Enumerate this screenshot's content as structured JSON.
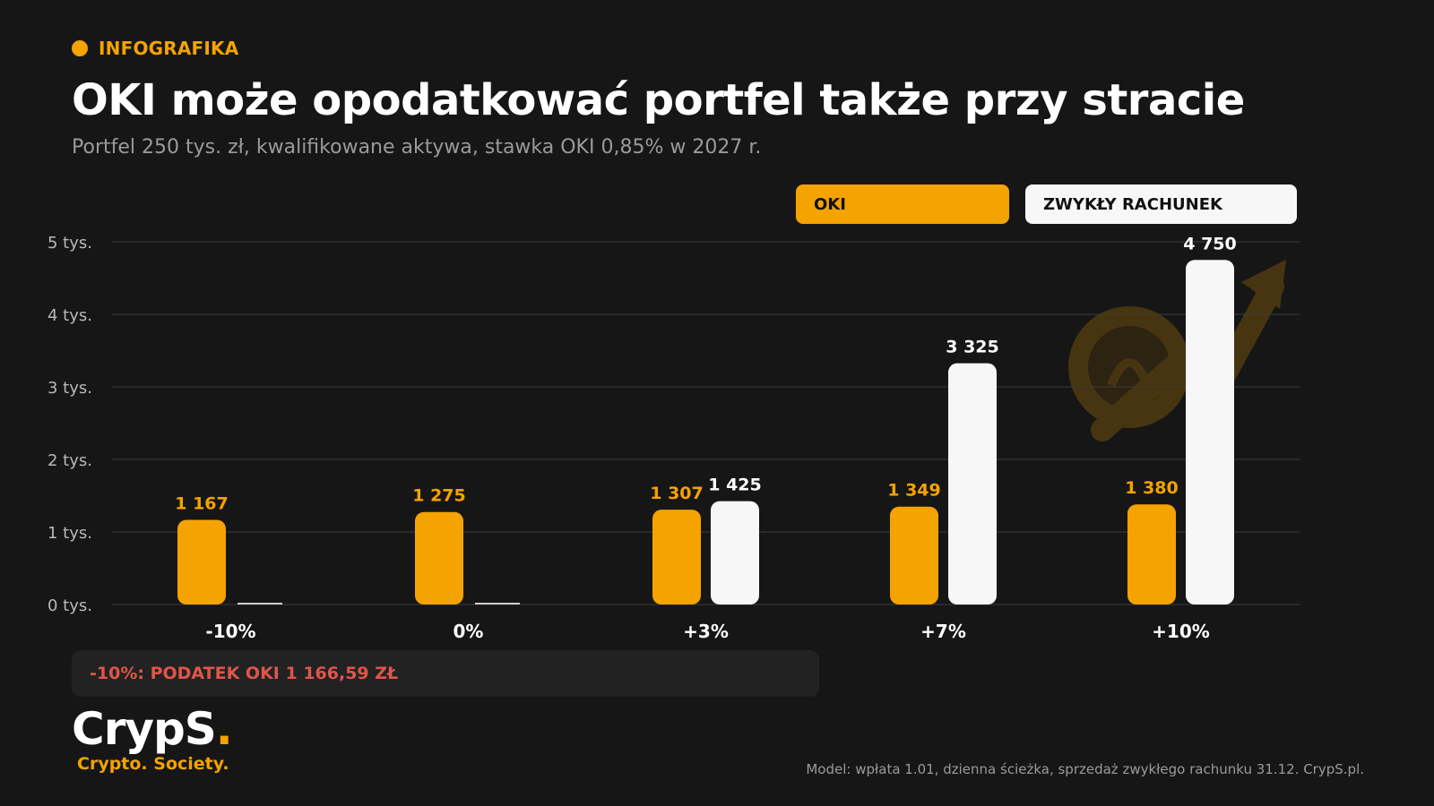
{
  "header": {
    "tag": "INFOGRAFIKA",
    "title": "OKI może opodatkować portfel także przy stracie",
    "subtitle": "Portfel 250 tys. zł, kwalifikowane aktywa, stawka OKI 0,85% w 2027 r."
  },
  "colors": {
    "oki": "#F5A300",
    "regular": "#F7F7F7",
    "background": "#161616",
    "note": "#E0554B"
  },
  "chart_data": {
    "type": "bar",
    "categories": [
      "-10%",
      "0%",
      "+3%",
      "+7%",
      "+10%"
    ],
    "series": [
      {
        "name": "OKI",
        "values": [
          1167,
          1275,
          1307,
          1349,
          1380
        ],
        "labels": [
          "1 167",
          "1 275",
          "1 307",
          "1 349",
          "1 380"
        ]
      },
      {
        "name": "ZWYKŁY RACHUNEK",
        "values": [
          0,
          0,
          1425,
          3325,
          4750
        ],
        "labels": [
          "",
          "",
          "1 425",
          "3 325",
          "4 750"
        ]
      }
    ],
    "yticks": [
      0,
      1000,
      2000,
      3000,
      4000,
      5000
    ],
    "ytick_labels": [
      "0 tys.",
      "1 tys.",
      "2 tys.",
      "3 tys.",
      "4 tys.",
      "5 tys."
    ],
    "ylim": [
      0,
      5000
    ],
    "grid": true,
    "legend_position": "top-right"
  },
  "note": "-10%: PODATEK OKI 1 166,59 ZŁ",
  "logo": {
    "main": "CrypS",
    "dot": ".",
    "sub": "Crypto. Society."
  },
  "footer": "Model: wpłata 1.01, dzienna ścieżka, sprzedaż zwykłego rachunku 31.12. CrypS.pl."
}
